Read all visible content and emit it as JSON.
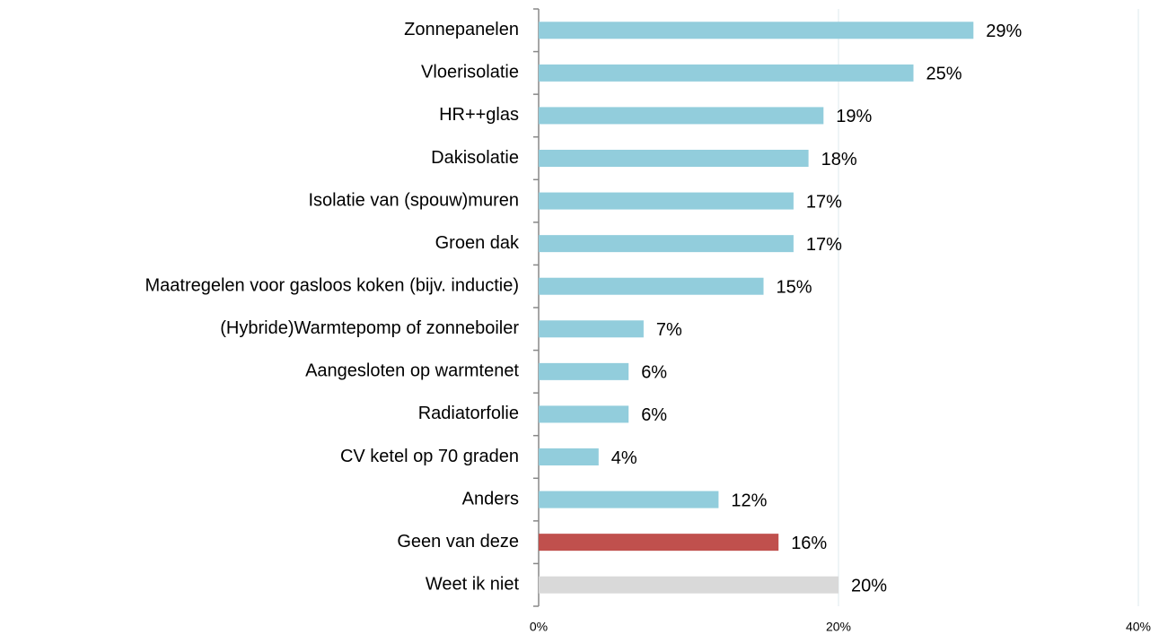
{
  "chart_data": {
    "type": "barh",
    "categories": [
      "Zonnepanelen",
      "Vloerisolatie",
      "HR++glas",
      "Dakisolatie",
      "Isolatie van (spouw)muren",
      "Groen dak",
      "Maatregelen voor gasloos koken (bijv. inductie)",
      "(Hybride)Warmtepomp of zonneboiler",
      "Aangesloten op warmtenet",
      "Radiatorfolie",
      "CV ketel op 70 graden",
      "Anders",
      "Geen van deze",
      "Weet ik niet"
    ],
    "values": [
      29,
      25,
      19,
      18,
      17,
      17,
      15,
      7,
      6,
      6,
      4,
      12,
      16,
      20
    ],
    "value_labels": [
      "29%",
      "25%",
      "19%",
      "18%",
      "17%",
      "17%",
      "15%",
      "7%",
      "6%",
      "6%",
      "4%",
      "12%",
      "16%",
      "20%"
    ],
    "colors": [
      "#92cddc",
      "#92cddc",
      "#92cddc",
      "#92cddc",
      "#92cddc",
      "#92cddc",
      "#92cddc",
      "#92cddc",
      "#92cddc",
      "#92cddc",
      "#92cddc",
      "#92cddc",
      "#c0504d",
      "#d9d9d9"
    ],
    "xlim": [
      0,
      40
    ],
    "xticks": [
      {
        "value": 0,
        "label": "0%"
      },
      {
        "value": 20,
        "label": "20%"
      },
      {
        "value": 40,
        "label": "40%"
      }
    ],
    "grid": true
  }
}
